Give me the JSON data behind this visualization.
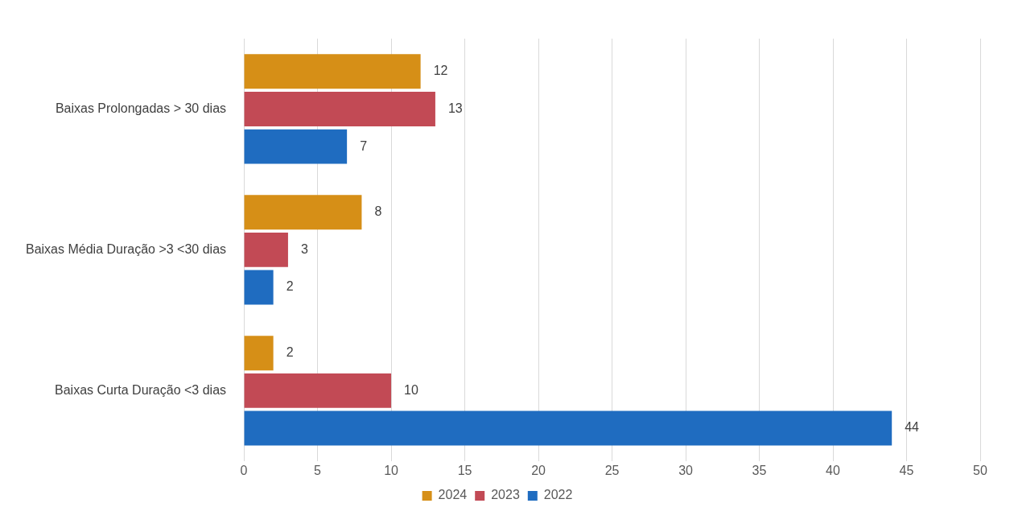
{
  "chart_data": {
    "type": "bar",
    "orientation": "horizontal",
    "categories": [
      "Baixas Prolongadas > 30 dias",
      "Baixas Média Duração >3 <30 dias",
      "Baixas Curta Duração <3 dias"
    ],
    "series": [
      {
        "name": "2024",
        "color": "#d68f17",
        "values": [
          12,
          8,
          2
        ]
      },
      {
        "name": "2023",
        "color": "#c24a55",
        "values": [
          13,
          3,
          10
        ]
      },
      {
        "name": "2022",
        "color": "#1f6cc0",
        "values": [
          7,
          2,
          44
        ]
      }
    ],
    "xlim": [
      0,
      50
    ],
    "xticks": [
      0,
      5,
      10,
      15,
      20,
      25,
      30,
      35,
      40,
      45,
      50
    ],
    "grid": "x",
    "legend": "bottom",
    "data_labels": true
  }
}
